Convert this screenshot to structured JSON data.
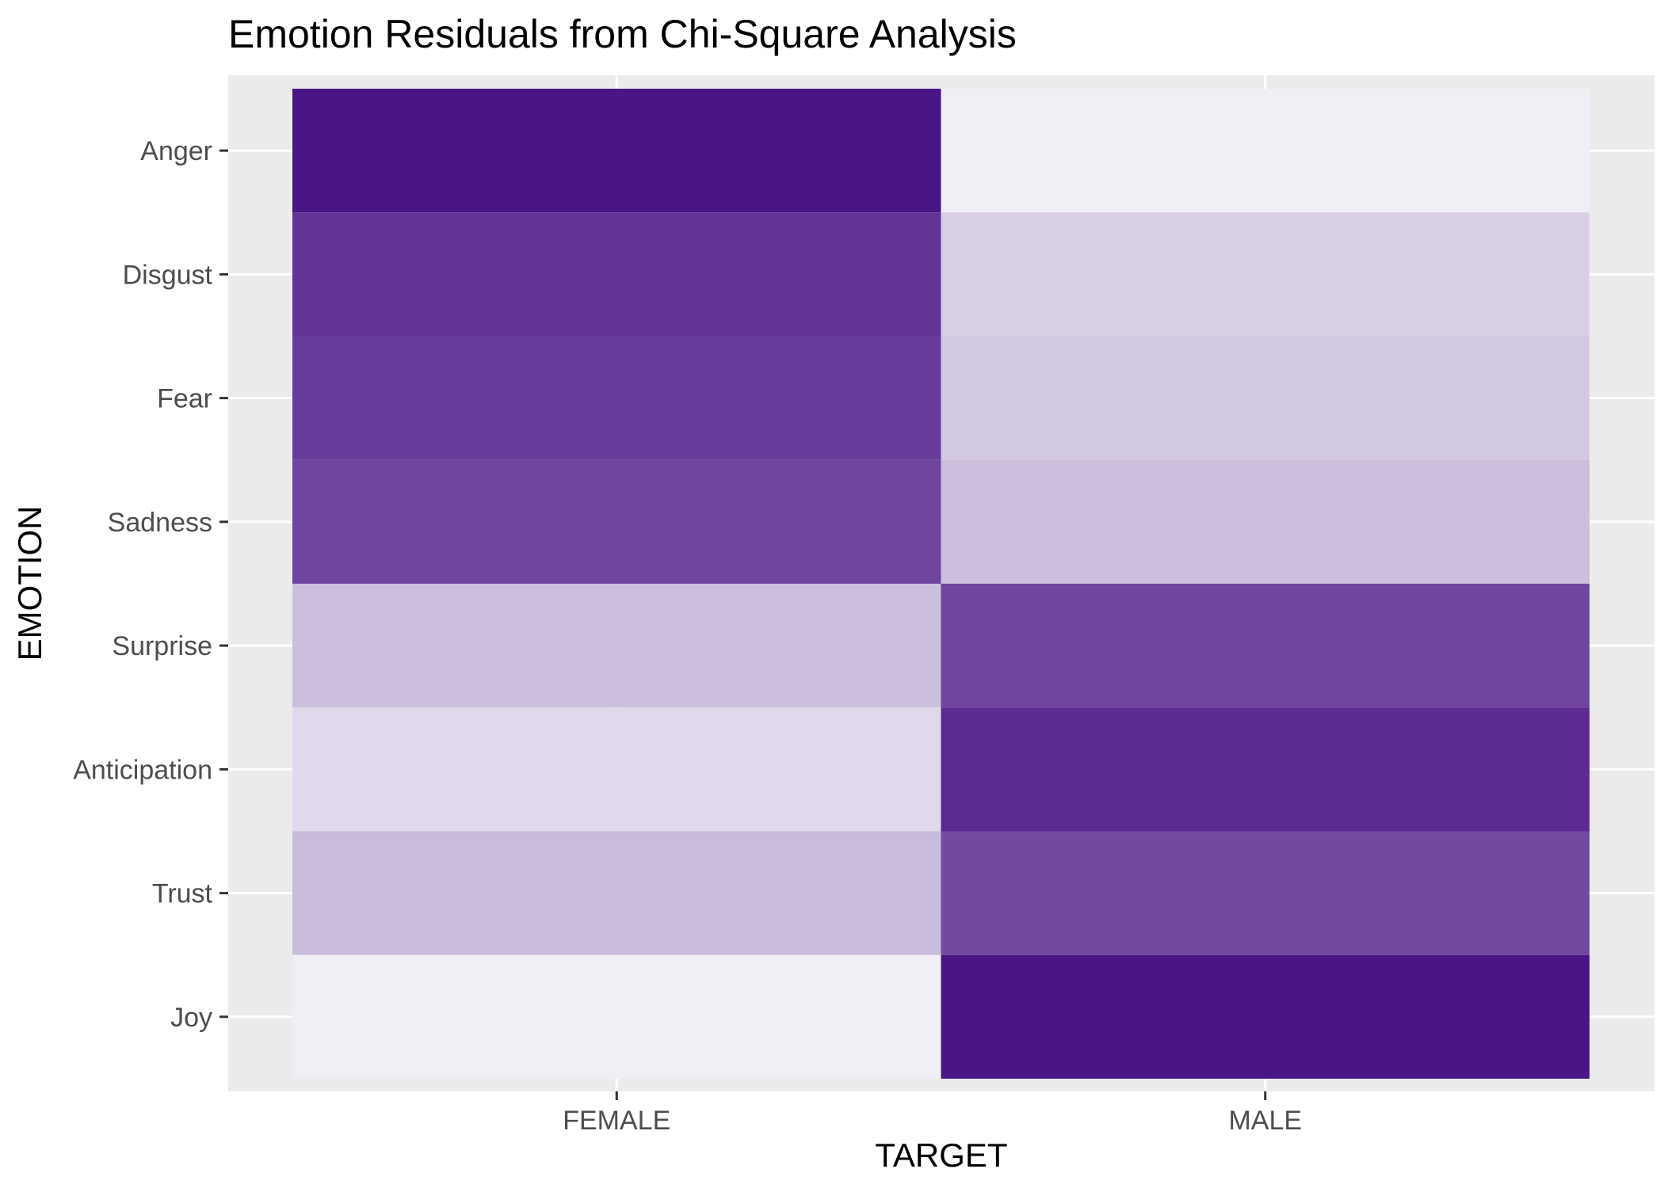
{
  "chart_data": {
    "type": "heatmap",
    "title": "Emotion Residuals from Chi-Square Analysis",
    "xlabel": "TARGET",
    "ylabel": "EMOTION",
    "x_categories": [
      "FEMALE",
      "MALE"
    ],
    "y_categories": [
      "Anger",
      "Disgust",
      "Fear",
      "Sadness",
      "Surprise",
      "Anticipation",
      "Trust",
      "Joy"
    ],
    "values": [
      {
        "emotion": "Anger",
        "FEMALE": 5.0,
        "MALE": -5.0
      },
      {
        "emotion": "Disgust",
        "FEMALE": 3.6,
        "MALE": -3.6
      },
      {
        "emotion": "Fear",
        "FEMALE": 3.2,
        "MALE": -3.2
      },
      {
        "emotion": "Sadness",
        "FEMALE": 2.8,
        "MALE": -2.8
      },
      {
        "emotion": "Surprise",
        "FEMALE": -2.8,
        "MALE": 2.8
      },
      {
        "emotion": "Anticipation",
        "FEMALE": -4.0,
        "MALE": 4.0
      },
      {
        "emotion": "Trust",
        "FEMALE": -2.6,
        "MALE": 2.6
      },
      {
        "emotion": "Joy",
        "FEMALE": -5.0,
        "MALE": 5.0
      }
    ],
    "color_scale": {
      "low": "#f0eff6",
      "high": "#4a1586"
    },
    "legend": "none",
    "grid": true,
    "panel_background": "#ebebeb"
  }
}
